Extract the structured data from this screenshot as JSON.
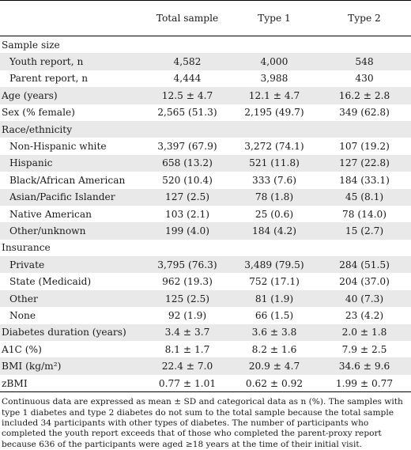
{
  "headers": [
    "",
    "Total sample",
    "Type 1",
    "Type 2"
  ],
  "rows": [
    {
      "label": "Sample size",
      "cells": [
        "",
        "",
        ""
      ],
      "indent": false,
      "shade": false
    },
    {
      "label": "Youth report, n",
      "cells": [
        "4,582",
        "4,000",
        "548"
      ],
      "indent": true,
      "shade": true
    },
    {
      "label": "Parent report, n",
      "cells": [
        "4,444",
        "3,988",
        "430"
      ],
      "indent": true,
      "shade": false
    },
    {
      "label": "Age (years)",
      "cells": [
        "12.5 ± 4.7",
        "12.1 ± 4.7",
        "16.2 ± 2.8"
      ],
      "indent": false,
      "shade": true
    },
    {
      "label": "Sex (% female)",
      "cells": [
        "2,565 (51.3)",
        "2,195 (49.7)",
        "349 (62.8)"
      ],
      "indent": false,
      "shade": false
    },
    {
      "label": "Race/ethnicity",
      "cells": [
        "",
        "",
        ""
      ],
      "indent": false,
      "shade": true
    },
    {
      "label": "Non-Hispanic white",
      "cells": [
        "3,397 (67.9)",
        "3,272 (74.1)",
        "107 (19.2)"
      ],
      "indent": true,
      "shade": false
    },
    {
      "label": "Hispanic",
      "cells": [
        "658 (13.2)",
        "521 (11.8)",
        "127 (22.8)"
      ],
      "indent": true,
      "shade": true
    },
    {
      "label": "Black/African American",
      "cells": [
        "520 (10.4)",
        "333 (7.6)",
        "184 (33.1)"
      ],
      "indent": true,
      "shade": false
    },
    {
      "label": "Asian/Pacific Islander",
      "cells": [
        "127 (2.5)",
        "78 (1.8)",
        "45 (8.1)"
      ],
      "indent": true,
      "shade": true
    },
    {
      "label": "Native American",
      "cells": [
        "103 (2.1)",
        "25 (0.6)",
        "78 (14.0)"
      ],
      "indent": true,
      "shade": false
    },
    {
      "label": "Other/unknown",
      "cells": [
        "199 (4.0)",
        "184 (4.2)",
        "15 (2.7)"
      ],
      "indent": true,
      "shade": true
    },
    {
      "label": "Insurance",
      "cells": [
        "",
        "",
        ""
      ],
      "indent": false,
      "shade": false
    },
    {
      "label": "Private",
      "cells": [
        "3,795 (76.3)",
        "3,489 (79.5)",
        "284 (51.5)"
      ],
      "indent": true,
      "shade": true
    },
    {
      "label": "State (Medicaid)",
      "cells": [
        "962 (19.3)",
        "752 (17.1)",
        "204 (37.0)"
      ],
      "indent": true,
      "shade": false
    },
    {
      "label": "Other",
      "cells": [
        "125 (2.5)",
        "81 (1.9)",
        "40 (7.3)"
      ],
      "indent": true,
      "shade": true
    },
    {
      "label": "None",
      "cells": [
        "92 (1.9)",
        "66 (1.5)",
        "23 (4.2)"
      ],
      "indent": true,
      "shade": false
    },
    {
      "label": "Diabetes duration (years)",
      "cells": [
        "3.4 ± 3.7",
        "3.6 ± 3.8",
        "2.0 ± 1.8"
      ],
      "indent": false,
      "shade": true
    },
    {
      "label": "A1C (%)",
      "cells": [
        "8.1 ± 1.7",
        "8.2 ± 1.6",
        "7.9 ± 2.5"
      ],
      "indent": false,
      "shade": false
    },
    {
      "label": "BMI (kg/m²)",
      "cells": [
        "22.4 ± 7.0",
        "20.9 ± 4.7",
        "34.6 ± 9.6"
      ],
      "indent": false,
      "shade": true
    },
    {
      "label": "zBMI",
      "cells": [
        "0.77 ± 1.01",
        "0.62 ± 0.92",
        "1.99 ± 0.77"
      ],
      "indent": false,
      "shade": false
    }
  ],
  "footnote": "Continuous data are expressed as mean ± SD and categorical data as n (%). The samples with type 1 diabetes and type 2 diabetes do not sum to the total sample because the total sample included 34 participants with other types of diabetes. The number of participants who completed the youth report exceeds that of those who completed the parent-proxy report because 636 of the participants were aged ≥18 years at the time of their initial visit."
}
